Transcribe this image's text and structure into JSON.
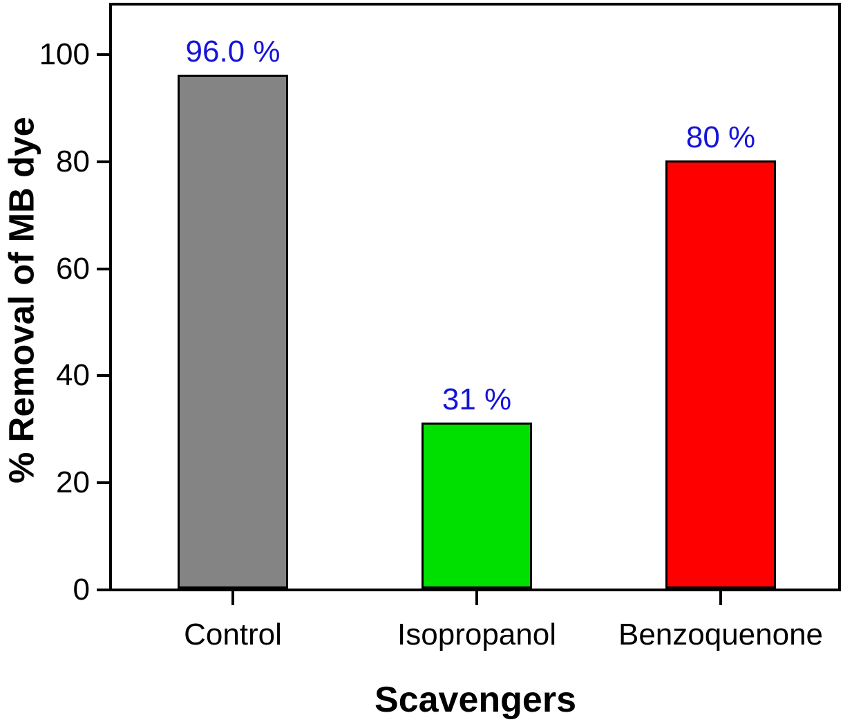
{
  "chart_data": {
    "type": "bar",
    "title": "",
    "xlabel": "Scavengers",
    "ylabel": "% Removal of MB dye",
    "categories": [
      "Control",
      "Isopropanol",
      "Benzoquenone"
    ],
    "values": [
      96,
      31,
      80
    ],
    "bar_labels": [
      "96.0 %",
      "31 %",
      "80 %"
    ],
    "bar_colors": [
      "#848484",
      "#00e000",
      "#ff0000"
    ],
    "bar_border_color": "#000000",
    "value_label_color": "#1414d9",
    "axis_color": "#000000",
    "background_color": "#ffffff",
    "ylim": [
      0,
      110
    ],
    "yticks": [
      0,
      20,
      40,
      60,
      80,
      100
    ],
    "grid": false,
    "legend_position": "none"
  }
}
